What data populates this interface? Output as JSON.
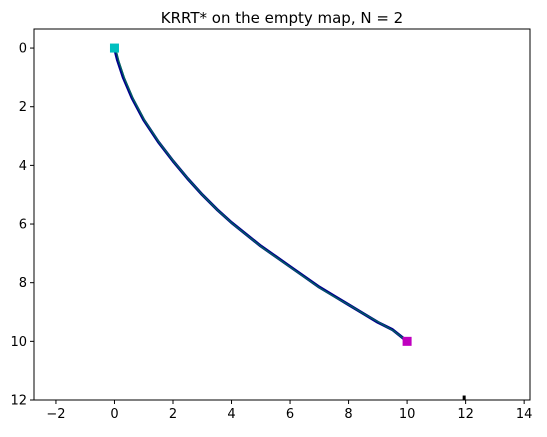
{
  "chart_data": {
    "type": "line",
    "title": "KRRT* on the empty map, N = 2",
    "xlabel": "",
    "ylabel": "",
    "xlim": [
      -2.75,
      14.2
    ],
    "ylim": [
      12,
      -0.65
    ],
    "y_axis_inverted": true,
    "grid": false,
    "legend": "none",
    "x_ticks": [
      -2,
      0,
      2,
      4,
      6,
      8,
      10,
      12,
      14
    ],
    "x_tick_labels": [
      "−2",
      "0",
      "2",
      "4",
      "6",
      "8",
      "10",
      "12",
      "14"
    ],
    "y_ticks": [
      0,
      2,
      4,
      6,
      8,
      10,
      12
    ],
    "y_tick_labels": [
      "0",
      "2",
      "4",
      "6",
      "8",
      "10",
      "12"
    ],
    "series": [
      {
        "kind": "trajectory",
        "color": "#00008b",
        "points": [
          [
            0.0,
            0.0
          ],
          [
            0.1,
            0.4
          ],
          [
            0.3,
            1.0
          ],
          [
            0.6,
            1.7
          ],
          [
            1.0,
            2.45
          ],
          [
            1.5,
            3.2
          ],
          [
            2.0,
            3.85
          ],
          [
            2.5,
            4.45
          ],
          [
            3.0,
            5.0
          ],
          [
            3.5,
            5.5
          ],
          [
            4.0,
            5.95
          ],
          [
            4.5,
            6.35
          ],
          [
            5.0,
            6.75
          ],
          [
            5.5,
            7.1
          ],
          [
            6.0,
            7.45
          ],
          [
            6.5,
            7.8
          ],
          [
            7.0,
            8.15
          ],
          [
            7.5,
            8.45
          ],
          [
            8.0,
            8.75
          ],
          [
            8.5,
            9.05
          ],
          [
            9.0,
            9.35
          ],
          [
            9.5,
            9.6
          ],
          [
            10.0,
            10.0
          ]
        ]
      },
      {
        "kind": "trajectory",
        "color": "#006060",
        "points": [
          [
            0.05,
            0.05
          ],
          [
            0.15,
            0.45
          ],
          [
            0.35,
            1.05
          ],
          [
            0.65,
            1.75
          ],
          [
            1.05,
            2.5
          ],
          [
            1.55,
            3.25
          ],
          [
            2.05,
            3.9
          ],
          [
            2.55,
            4.5
          ],
          [
            3.05,
            5.05
          ],
          [
            3.55,
            5.55
          ],
          [
            4.05,
            6.0
          ],
          [
            4.55,
            6.4
          ],
          [
            5.05,
            6.8
          ],
          [
            5.55,
            7.15
          ],
          [
            6.05,
            7.5
          ],
          [
            6.55,
            7.85
          ],
          [
            7.05,
            8.2
          ],
          [
            7.55,
            8.5
          ],
          [
            8.05,
            8.78
          ],
          [
            8.55,
            9.08
          ],
          [
            9.05,
            9.36
          ],
          [
            9.55,
            9.65
          ],
          [
            10.0,
            10.0
          ]
        ]
      }
    ],
    "markers": [
      {
        "name": "start",
        "x": 0,
        "y": 0,
        "color": "#00bfbf",
        "shape": "square"
      },
      {
        "name": "goal",
        "x": 10,
        "y": 10,
        "color": "#bf00bf",
        "shape": "square"
      }
    ],
    "stray_points": [
      {
        "x": 11.95,
        "y": 11.95,
        "color": "#000000"
      }
    ]
  }
}
